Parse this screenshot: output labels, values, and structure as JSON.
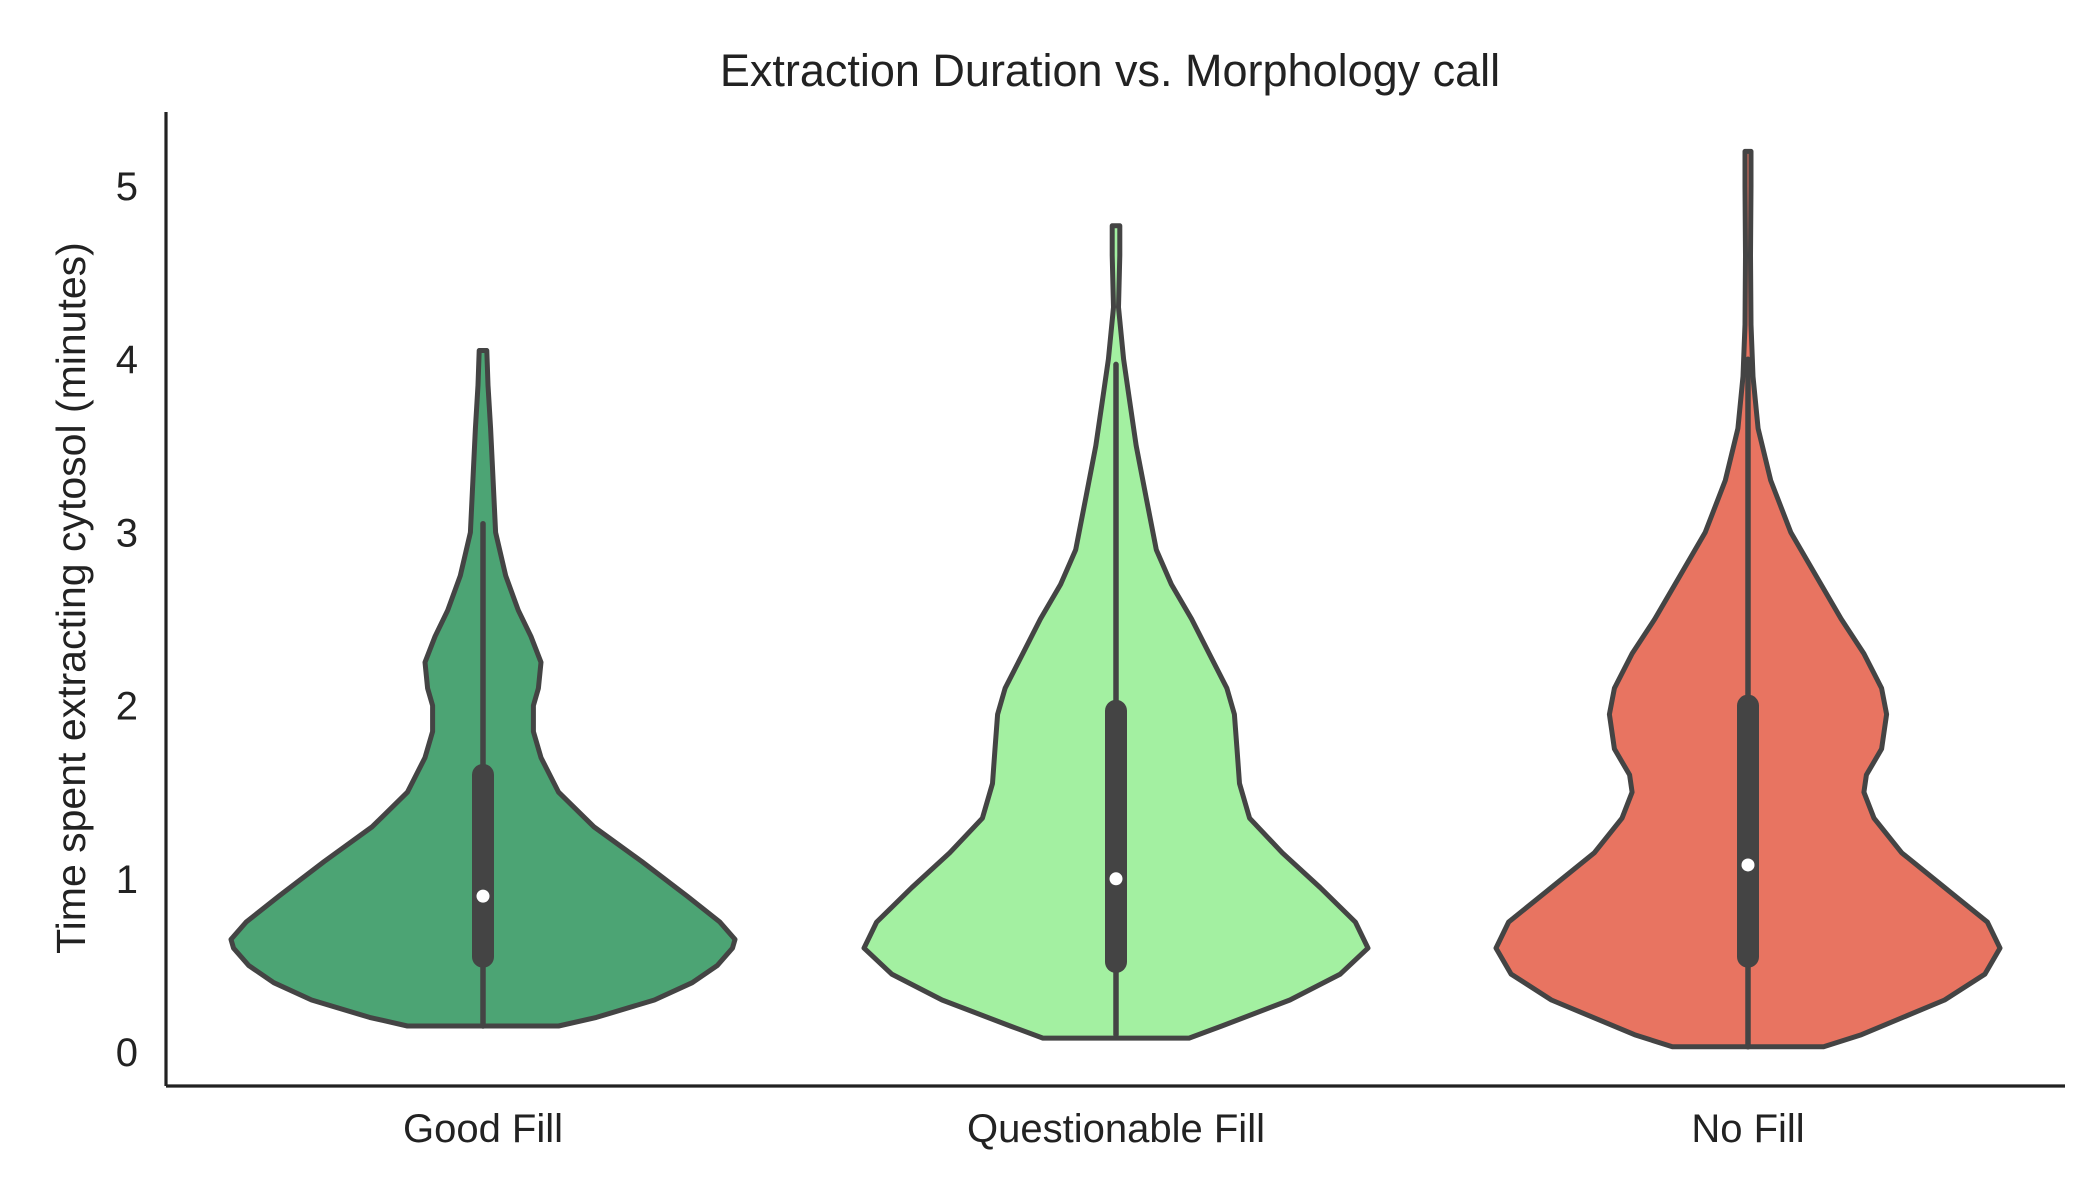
{
  "chart_data": {
    "type": "violin",
    "title": "Extraction Duration vs. Morphology call",
    "xlabel": "",
    "ylabel": "Time spent extracting cytosol (minutes)",
    "ylim": [
      -0.2,
      5.5
    ],
    "yticks": [
      0,
      1,
      2,
      3,
      4,
      5
    ],
    "categories": [
      "Good Fill",
      "Questionable Fill",
      "No Fill"
    ],
    "grid": false,
    "series": [
      {
        "category": "Good Fill",
        "color": "#4ca474",
        "min": 0.15,
        "max": 4.05,
        "q1": 0.55,
        "median": 0.9,
        "q3": 1.6,
        "whisker_low": 0.15,
        "whisker_high": 3.05,
        "density": [
          [
            0.15,
            0.3
          ],
          [
            0.2,
            0.45
          ],
          [
            0.3,
            0.68
          ],
          [
            0.4,
            0.83
          ],
          [
            0.5,
            0.93
          ],
          [
            0.6,
            0.99
          ],
          [
            0.65,
            1.0
          ],
          [
            0.75,
            0.94
          ],
          [
            0.9,
            0.81
          ],
          [
            1.1,
            0.63
          ],
          [
            1.3,
            0.44
          ],
          [
            1.5,
            0.3
          ],
          [
            1.7,
            0.23
          ],
          [
            1.85,
            0.2
          ],
          [
            2.0,
            0.2
          ],
          [
            2.1,
            0.22
          ],
          [
            2.25,
            0.23
          ],
          [
            2.4,
            0.19
          ],
          [
            2.55,
            0.14
          ],
          [
            2.75,
            0.09
          ],
          [
            3.0,
            0.05
          ],
          [
            3.3,
            0.04
          ],
          [
            3.6,
            0.03
          ],
          [
            3.85,
            0.02
          ],
          [
            4.05,
            0.015
          ]
        ]
      },
      {
        "category": "Questionable Fill",
        "color": "#a3f0a1",
        "min": 0.08,
        "max": 4.77,
        "q1": 0.52,
        "median": 1.0,
        "q3": 1.97,
        "whisker_low": 0.1,
        "whisker_high": 3.97,
        "density": [
          [
            0.08,
            0.29
          ],
          [
            0.15,
            0.42
          ],
          [
            0.3,
            0.69
          ],
          [
            0.45,
            0.89
          ],
          [
            0.6,
            1.0
          ],
          [
            0.75,
            0.95
          ],
          [
            0.95,
            0.81
          ],
          [
            1.15,
            0.66
          ],
          [
            1.35,
            0.53
          ],
          [
            1.55,
            0.49
          ],
          [
            1.75,
            0.48
          ],
          [
            1.95,
            0.47
          ],
          [
            2.1,
            0.44
          ],
          [
            2.3,
            0.37
          ],
          [
            2.5,
            0.3
          ],
          [
            2.7,
            0.22
          ],
          [
            2.9,
            0.16
          ],
          [
            3.2,
            0.12
          ],
          [
            3.5,
            0.08
          ],
          [
            3.8,
            0.05
          ],
          [
            4.0,
            0.03
          ],
          [
            4.3,
            0.01
          ],
          [
            4.6,
            0.015
          ],
          [
            4.77,
            0.015
          ]
        ]
      },
      {
        "category": "No Fill",
        "color": "#e87461",
        "min": 0.03,
        "max": 5.2,
        "q1": 0.55,
        "median": 1.08,
        "q3": 2.0,
        "whisker_low": 0.03,
        "whisker_high": 4.0,
        "density": [
          [
            0.03,
            0.3
          ],
          [
            0.1,
            0.45
          ],
          [
            0.3,
            0.78
          ],
          [
            0.45,
            0.94
          ],
          [
            0.6,
            1.0
          ],
          [
            0.75,
            0.95
          ],
          [
            0.95,
            0.78
          ],
          [
            1.15,
            0.61
          ],
          [
            1.35,
            0.5
          ],
          [
            1.5,
            0.46
          ],
          [
            1.6,
            0.47
          ],
          [
            1.75,
            0.53
          ],
          [
            1.95,
            0.55
          ],
          [
            2.1,
            0.53
          ],
          [
            2.3,
            0.46
          ],
          [
            2.5,
            0.37
          ],
          [
            2.75,
            0.27
          ],
          [
            3.0,
            0.17
          ],
          [
            3.3,
            0.09
          ],
          [
            3.6,
            0.04
          ],
          [
            3.9,
            0.02
          ],
          [
            4.2,
            0.012
          ],
          [
            4.6,
            0.01
          ],
          [
            5.0,
            0.012
          ],
          [
            5.2,
            0.012
          ]
        ]
      }
    ]
  }
}
